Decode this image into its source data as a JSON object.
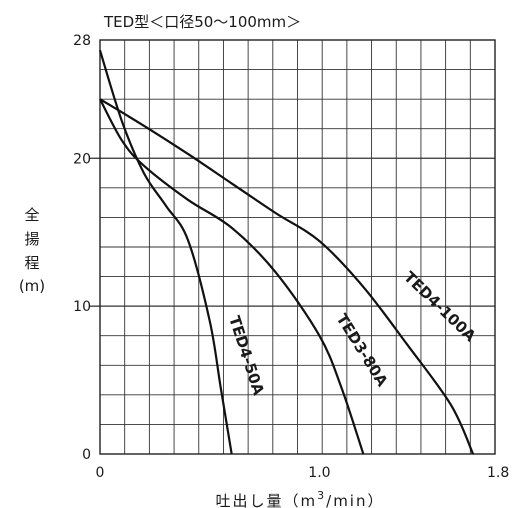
{
  "chart_data": {
    "type": "line",
    "title": "TED型＜口径50～100mm＞",
    "ylabel_chars": [
      "全",
      "揚",
      "程"
    ],
    "ylabel_unit": "(m)",
    "xlabel_main": "吐出し量（m",
    "xlabel_sup": "3",
    "xlabel_tail": "/min）",
    "xlim": [
      0,
      1.8
    ],
    "ylim": [
      0,
      28
    ],
    "x_ticks": [
      {
        "value": 0,
        "label": "0"
      },
      {
        "value": 1.0,
        "label": "1.0"
      },
      {
        "value": 1.8,
        "label": "1.8"
      }
    ],
    "y_ticks": [
      {
        "value": 0,
        "label": "0"
      },
      {
        "value": 10,
        "label": "10"
      },
      {
        "value": 20,
        "label": "20"
      },
      {
        "value": 28,
        "label": "28"
      }
    ],
    "grid": true,
    "series": [
      {
        "name": "TED4-50A",
        "points": [
          [
            0,
            27.3
          ],
          [
            0.1,
            22.5
          ],
          [
            0.2,
            19.0
          ],
          [
            0.3,
            16.8
          ],
          [
            0.4,
            14.5
          ],
          [
            0.5,
            9.0
          ],
          [
            0.55,
            4.5
          ],
          [
            0.6,
            0
          ]
        ]
      },
      {
        "name": "TED3-80A",
        "points": [
          [
            0,
            24.0
          ],
          [
            0.1,
            21.2
          ],
          [
            0.2,
            19.5
          ],
          [
            0.4,
            17.2
          ],
          [
            0.6,
            15.3
          ],
          [
            0.8,
            12.3
          ],
          [
            1.0,
            8.0
          ],
          [
            1.1,
            4.5
          ],
          [
            1.2,
            0
          ]
        ]
      },
      {
        "name": "TED4-100A",
        "points": [
          [
            0,
            24.0
          ],
          [
            0.2,
            22.2
          ],
          [
            0.4,
            20.3
          ],
          [
            0.6,
            18.3
          ],
          [
            0.8,
            16.3
          ],
          [
            1.0,
            14.4
          ],
          [
            1.2,
            11.3
          ],
          [
            1.4,
            7.4
          ],
          [
            1.6,
            3.3
          ],
          [
            1.7,
            0
          ]
        ]
      }
    ]
  }
}
